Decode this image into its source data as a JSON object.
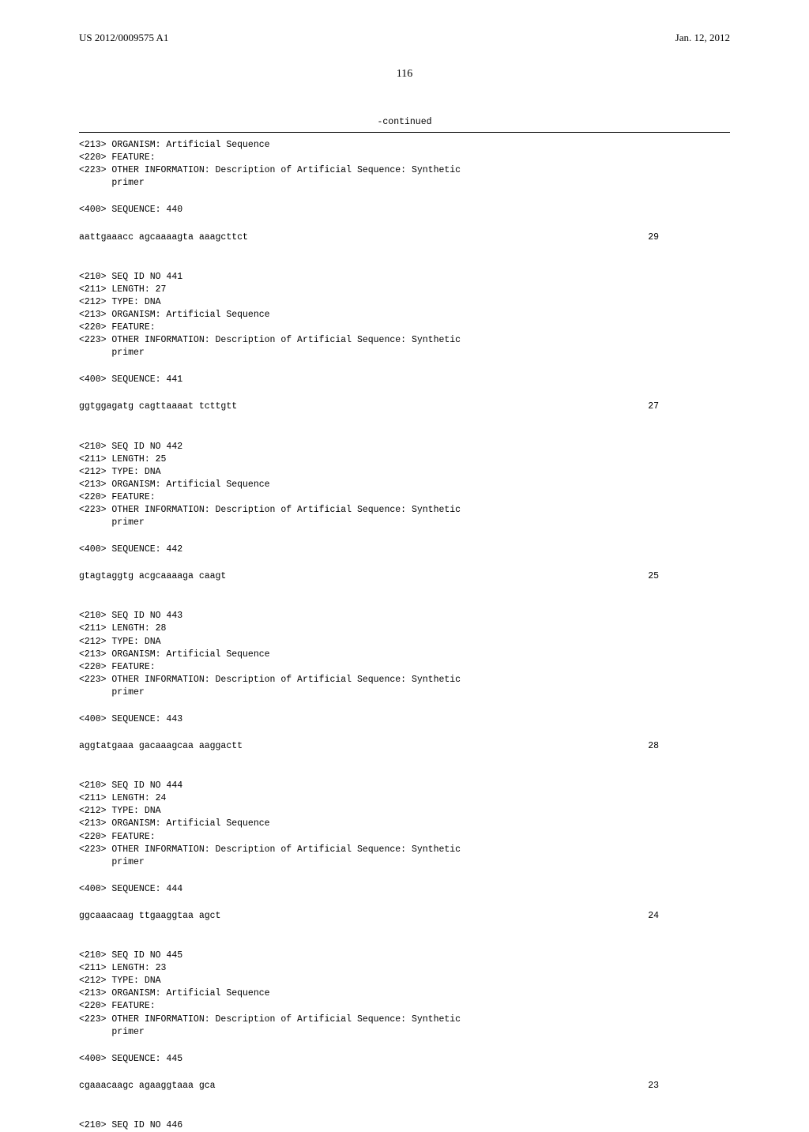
{
  "header": {
    "left": "US 2012/0009575 A1",
    "right": "Jan. 12, 2012"
  },
  "page_number": "116",
  "continued_label": "-continued",
  "blocks": [
    {
      "lines": [
        "<213> ORGANISM: Artificial Sequence",
        "<220> FEATURE:",
        "<223> OTHER INFORMATION: Description of Artificial Sequence: Synthetic",
        "      primer"
      ]
    },
    {
      "lines": [
        "<400> SEQUENCE: 440"
      ]
    },
    {
      "seq": "aattgaaacc agcaaaagta aaagcttct",
      "num": "29"
    },
    {
      "lines": [
        "<210> SEQ ID NO 441",
        "<211> LENGTH: 27",
        "<212> TYPE: DNA",
        "<213> ORGANISM: Artificial Sequence",
        "<220> FEATURE:",
        "<223> OTHER INFORMATION: Description of Artificial Sequence: Synthetic",
        "      primer"
      ]
    },
    {
      "lines": [
        "<400> SEQUENCE: 441"
      ]
    },
    {
      "seq": "ggtggagatg cagttaaaat tcttgtt",
      "num": "27"
    },
    {
      "lines": [
        "<210> SEQ ID NO 442",
        "<211> LENGTH: 25",
        "<212> TYPE: DNA",
        "<213> ORGANISM: Artificial Sequence",
        "<220> FEATURE:",
        "<223> OTHER INFORMATION: Description of Artificial Sequence: Synthetic",
        "      primer"
      ]
    },
    {
      "lines": [
        "<400> SEQUENCE: 442"
      ]
    },
    {
      "seq": "gtagtaggtg acgcaaaaga caagt",
      "num": "25"
    },
    {
      "lines": [
        "<210> SEQ ID NO 443",
        "<211> LENGTH: 28",
        "<212> TYPE: DNA",
        "<213> ORGANISM: Artificial Sequence",
        "<220> FEATURE:",
        "<223> OTHER INFORMATION: Description of Artificial Sequence: Synthetic",
        "      primer"
      ]
    },
    {
      "lines": [
        "<400> SEQUENCE: 443"
      ]
    },
    {
      "seq": "aggtatgaaa gacaaagcaa aaggactt",
      "num": "28"
    },
    {
      "lines": [
        "<210> SEQ ID NO 444",
        "<211> LENGTH: 24",
        "<212> TYPE: DNA",
        "<213> ORGANISM: Artificial Sequence",
        "<220> FEATURE:",
        "<223> OTHER INFORMATION: Description of Artificial Sequence: Synthetic",
        "      primer"
      ]
    },
    {
      "lines": [
        "<400> SEQUENCE: 444"
      ]
    },
    {
      "seq": "ggcaaacaag ttgaaggtaa agct",
      "num": "24"
    },
    {
      "lines": [
        "<210> SEQ ID NO 445",
        "<211> LENGTH: 23",
        "<212> TYPE: DNA",
        "<213> ORGANISM: Artificial Sequence",
        "<220> FEATURE:",
        "<223> OTHER INFORMATION: Description of Artificial Sequence: Synthetic",
        "      primer"
      ]
    },
    {
      "lines": [
        "<400> SEQUENCE: 445"
      ]
    },
    {
      "seq": "cgaaacaagc agaaggtaaa gca",
      "num": "23"
    },
    {
      "lines": [
        "<210> SEQ ID NO 446"
      ],
      "no_margin": true
    }
  ]
}
